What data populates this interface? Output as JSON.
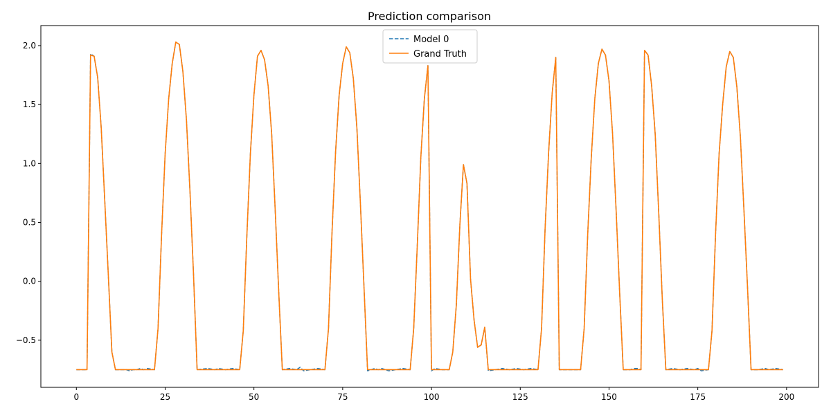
{
  "chart_data": {
    "type": "line",
    "title": "Prediction comparison",
    "xlabel": "",
    "ylabel": "",
    "xlim": [
      -10,
      209
    ],
    "ylim": [
      -0.9,
      2.17
    ],
    "x_ticks": [
      0,
      25,
      50,
      75,
      100,
      125,
      150,
      175,
      200
    ],
    "y_ticks": [
      -0.5,
      0.0,
      0.5,
      1.0,
      1.5,
      2.0
    ],
    "x_tick_labels": [
      "0",
      "25",
      "50",
      "75",
      "100",
      "125",
      "150",
      "175",
      "200"
    ],
    "y_tick_labels": [
      "−0.5",
      "0.0",
      "0.5",
      "1.0",
      "1.5",
      "2.0"
    ],
    "grid": false,
    "legend_position": "top-center",
    "series": [
      {
        "name": "Model 0",
        "color": "#1f77b4",
        "style": "dashed",
        "points": [
          [
            0,
            -0.75
          ],
          [
            3,
            -0.75
          ],
          [
            4,
            1.93
          ],
          [
            5,
            1.91
          ],
          [
            6,
            1.73
          ],
          [
            7,
            1.3
          ],
          [
            8,
            0.68
          ],
          [
            9,
            0.05
          ],
          [
            10,
            -0.6
          ],
          [
            11,
            -0.75
          ],
          [
            14,
            -0.75
          ],
          [
            15,
            -0.76
          ],
          [
            16,
            -0.75
          ],
          [
            17,
            -0.75
          ],
          [
            18,
            -0.74
          ],
          [
            19,
            -0.75
          ],
          [
            20,
            -0.74
          ],
          [
            22,
            -0.75
          ],
          [
            23,
            -0.4
          ],
          [
            24,
            0.4
          ],
          [
            25,
            1.08
          ],
          [
            26,
            1.55
          ],
          [
            27,
            1.85
          ],
          [
            28,
            2.03
          ],
          [
            29,
            2.01
          ],
          [
            30,
            1.78
          ],
          [
            31,
            1.37
          ],
          [
            32,
            0.76
          ],
          [
            33,
            0.05
          ],
          [
            34,
            -0.75
          ],
          [
            37,
            -0.74
          ],
          [
            39,
            -0.75
          ],
          [
            40,
            -0.74
          ],
          [
            42,
            -0.75
          ],
          [
            44,
            -0.74
          ],
          [
            46,
            -0.75
          ],
          [
            47,
            -0.42
          ],
          [
            48,
            0.38
          ],
          [
            49,
            1.08
          ],
          [
            50,
            1.58
          ],
          [
            51,
            1.91
          ],
          [
            52,
            1.96
          ],
          [
            53,
            1.88
          ],
          [
            54,
            1.66
          ],
          [
            55,
            1.25
          ],
          [
            56,
            0.6
          ],
          [
            57,
            -0.1
          ],
          [
            58,
            -0.75
          ],
          [
            60,
            -0.74
          ],
          [
            62,
            -0.75
          ],
          [
            63,
            -0.73
          ],
          [
            64,
            -0.76
          ],
          [
            66,
            -0.75
          ],
          [
            68,
            -0.74
          ],
          [
            70,
            -0.75
          ],
          [
            71,
            -0.4
          ],
          [
            72,
            0.42
          ],
          [
            73,
            1.1
          ],
          [
            74,
            1.58
          ],
          [
            75,
            1.85
          ],
          [
            76,
            1.99
          ],
          [
            77,
            1.94
          ],
          [
            78,
            1.72
          ],
          [
            79,
            1.3
          ],
          [
            80,
            0.65
          ],
          [
            81,
            -0.05
          ],
          [
            82,
            -0.76
          ],
          [
            83,
            -0.75
          ],
          [
            84,
            -0.74
          ],
          [
            85,
            -0.75
          ],
          [
            86,
            -0.74
          ],
          [
            88,
            -0.76
          ],
          [
            90,
            -0.75
          ],
          [
            92,
            -0.74
          ],
          [
            94,
            -0.75
          ],
          [
            95,
            -0.4
          ],
          [
            96,
            0.3
          ],
          [
            97,
            1.05
          ],
          [
            98,
            1.55
          ],
          [
            99,
            1.83
          ],
          [
            100,
            -0.76
          ],
          [
            101,
            -0.74
          ],
          [
            103,
            -0.75
          ],
          [
            105,
            -0.75
          ],
          [
            106,
            -0.6
          ],
          [
            107,
            -0.2
          ],
          [
            108,
            0.48
          ],
          [
            109,
            0.99
          ],
          [
            110,
            0.83
          ],
          [
            111,
            0.02
          ],
          [
            112,
            -0.33
          ],
          [
            113,
            -0.56
          ],
          [
            114,
            -0.54
          ],
          [
            115,
            -0.39
          ],
          [
            116,
            -0.76
          ],
          [
            118,
            -0.75
          ],
          [
            120,
            -0.74
          ],
          [
            122,
            -0.75
          ],
          [
            124,
            -0.74
          ],
          [
            126,
            -0.75
          ],
          [
            128,
            -0.74
          ],
          [
            130,
            -0.75
          ],
          [
            131,
            -0.4
          ],
          [
            132,
            0.45
          ],
          [
            133,
            1.1
          ],
          [
            134,
            1.6
          ],
          [
            135,
            1.9
          ],
          [
            136,
            -0.75
          ],
          [
            138,
            -0.75
          ],
          [
            140,
            -0.75
          ],
          [
            142,
            -0.75
          ],
          [
            143,
            -0.4
          ],
          [
            144,
            0.4
          ],
          [
            145,
            1.05
          ],
          [
            146,
            1.55
          ],
          [
            147,
            1.85
          ],
          [
            148,
            1.97
          ],
          [
            149,
            1.92
          ],
          [
            150,
            1.7
          ],
          [
            151,
            1.25
          ],
          [
            152,
            0.6
          ],
          [
            153,
            -0.1
          ],
          [
            154,
            -0.75
          ],
          [
            156,
            -0.75
          ],
          [
            157,
            -0.74
          ],
          [
            158,
            -0.74
          ],
          [
            159,
            -0.75
          ],
          [
            160,
            1.96
          ],
          [
            161,
            1.92
          ],
          [
            162,
            1.66
          ],
          [
            163,
            1.25
          ],
          [
            164,
            0.58
          ],
          [
            165,
            -0.15
          ],
          [
            166,
            -0.75
          ],
          [
            168,
            -0.74
          ],
          [
            170,
            -0.75
          ],
          [
            172,
            -0.74
          ],
          [
            174,
            -0.75
          ],
          [
            175,
            -0.74
          ],
          [
            176,
            -0.76
          ],
          [
            178,
            -0.75
          ],
          [
            179,
            -0.42
          ],
          [
            180,
            0.4
          ],
          [
            181,
            1.08
          ],
          [
            182,
            1.5
          ],
          [
            183,
            1.82
          ],
          [
            184,
            1.95
          ],
          [
            185,
            1.9
          ],
          [
            186,
            1.65
          ],
          [
            187,
            1.22
          ],
          [
            188,
            0.6
          ],
          [
            189,
            -0.05
          ],
          [
            190,
            -0.75
          ],
          [
            192,
            -0.75
          ],
          [
            194,
            -0.74
          ],
          [
            195,
            -0.75
          ],
          [
            197,
            -0.74
          ],
          [
            199,
            -0.75
          ]
        ]
      },
      {
        "name": "Grand Truth",
        "color": "#ff7f0e",
        "style": "solid",
        "points": [
          [
            0,
            -0.75
          ],
          [
            3,
            -0.75
          ],
          [
            4,
            1.92
          ],
          [
            5,
            1.91
          ],
          [
            6,
            1.73
          ],
          [
            7,
            1.3
          ],
          [
            8,
            0.68
          ],
          [
            9,
            0.05
          ],
          [
            10,
            -0.6
          ],
          [
            11,
            -0.75
          ],
          [
            22,
            -0.75
          ],
          [
            23,
            -0.4
          ],
          [
            24,
            0.4
          ],
          [
            25,
            1.08
          ],
          [
            26,
            1.55
          ],
          [
            27,
            1.85
          ],
          [
            28,
            2.03
          ],
          [
            29,
            2.01
          ],
          [
            30,
            1.78
          ],
          [
            31,
            1.37
          ],
          [
            32,
            0.76
          ],
          [
            33,
            0.05
          ],
          [
            34,
            -0.75
          ],
          [
            46,
            -0.75
          ],
          [
            47,
            -0.42
          ],
          [
            48,
            0.38
          ],
          [
            49,
            1.08
          ],
          [
            50,
            1.58
          ],
          [
            51,
            1.91
          ],
          [
            52,
            1.96
          ],
          [
            53,
            1.88
          ],
          [
            54,
            1.66
          ],
          [
            55,
            1.25
          ],
          [
            56,
            0.6
          ],
          [
            57,
            -0.1
          ],
          [
            58,
            -0.75
          ],
          [
            70,
            -0.75
          ],
          [
            71,
            -0.4
          ],
          [
            72,
            0.42
          ],
          [
            73,
            1.1
          ],
          [
            74,
            1.58
          ],
          [
            75,
            1.85
          ],
          [
            76,
            1.99
          ],
          [
            77,
            1.94
          ],
          [
            78,
            1.72
          ],
          [
            79,
            1.3
          ],
          [
            80,
            0.65
          ],
          [
            81,
            -0.05
          ],
          [
            82,
            -0.75
          ],
          [
            94,
            -0.75
          ],
          [
            95,
            -0.4
          ],
          [
            96,
            0.3
          ],
          [
            97,
            1.05
          ],
          [
            98,
            1.55
          ],
          [
            99,
            1.83
          ],
          [
            100,
            -0.75
          ],
          [
            105,
            -0.75
          ],
          [
            106,
            -0.6
          ],
          [
            107,
            -0.2
          ],
          [
            108,
            0.48
          ],
          [
            109,
            0.99
          ],
          [
            110,
            0.83
          ],
          [
            111,
            0.02
          ],
          [
            112,
            -0.33
          ],
          [
            113,
            -0.56
          ],
          [
            114,
            -0.54
          ],
          [
            115,
            -0.39
          ],
          [
            116,
            -0.75
          ],
          [
            130,
            -0.75
          ],
          [
            131,
            -0.4
          ],
          [
            132,
            0.45
          ],
          [
            133,
            1.1
          ],
          [
            134,
            1.6
          ],
          [
            135,
            1.9
          ],
          [
            136,
            -0.75
          ],
          [
            142,
            -0.75
          ],
          [
            143,
            -0.4
          ],
          [
            144,
            0.4
          ],
          [
            145,
            1.05
          ],
          [
            146,
            1.55
          ],
          [
            147,
            1.85
          ],
          [
            148,
            1.97
          ],
          [
            149,
            1.92
          ],
          [
            150,
            1.7
          ],
          [
            151,
            1.25
          ],
          [
            152,
            0.6
          ],
          [
            153,
            -0.1
          ],
          [
            154,
            -0.75
          ],
          [
            159,
            -0.75
          ],
          [
            160,
            1.96
          ],
          [
            161,
            1.92
          ],
          [
            162,
            1.66
          ],
          [
            163,
            1.25
          ],
          [
            164,
            0.58
          ],
          [
            165,
            -0.15
          ],
          [
            166,
            -0.75
          ],
          [
            178,
            -0.75
          ],
          [
            179,
            -0.42
          ],
          [
            180,
            0.4
          ],
          [
            181,
            1.08
          ],
          [
            182,
            1.5
          ],
          [
            183,
            1.82
          ],
          [
            184,
            1.95
          ],
          [
            185,
            1.9
          ],
          [
            186,
            1.65
          ],
          [
            187,
            1.22
          ],
          [
            188,
            0.6
          ],
          [
            189,
            -0.05
          ],
          [
            190,
            -0.75
          ],
          [
            199,
            -0.75
          ]
        ]
      }
    ]
  }
}
